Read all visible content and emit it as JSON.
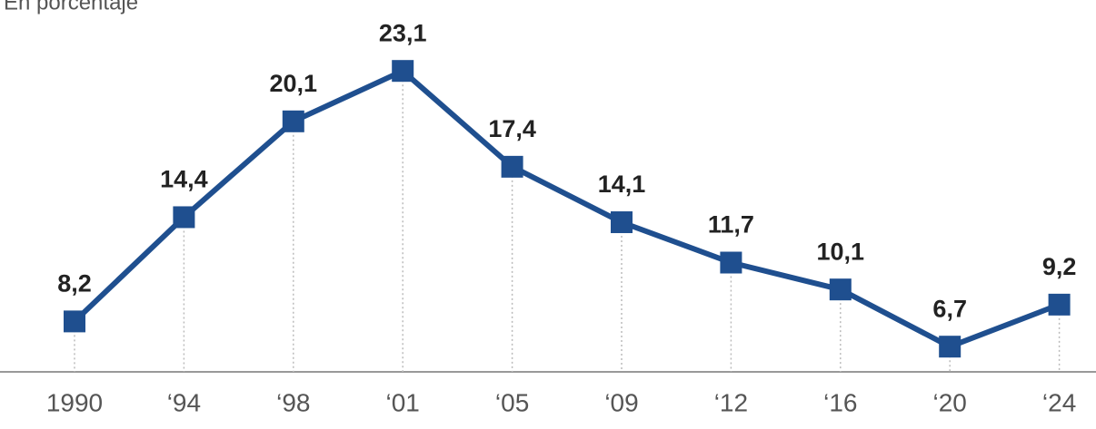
{
  "chart_data": {
    "type": "line",
    "subtitle": "En porcentaje",
    "categories": [
      "1990",
      "‘94",
      "‘98",
      "‘01",
      "‘05",
      "‘09",
      "‘12",
      "‘16",
      "‘20",
      "‘24"
    ],
    "values": [
      8.2,
      14.4,
      20.1,
      23.1,
      17.4,
      14.1,
      11.7,
      10.1,
      6.7,
      9.2
    ],
    "value_labels": [
      "8,2",
      "14,4",
      "20,1",
      "23,1",
      "17,4",
      "14,1",
      "11,7",
      "10,1",
      "6,7",
      "9,2"
    ],
    "color": "#1f4f8f",
    "ylim": [
      5.2,
      25.7
    ]
  }
}
